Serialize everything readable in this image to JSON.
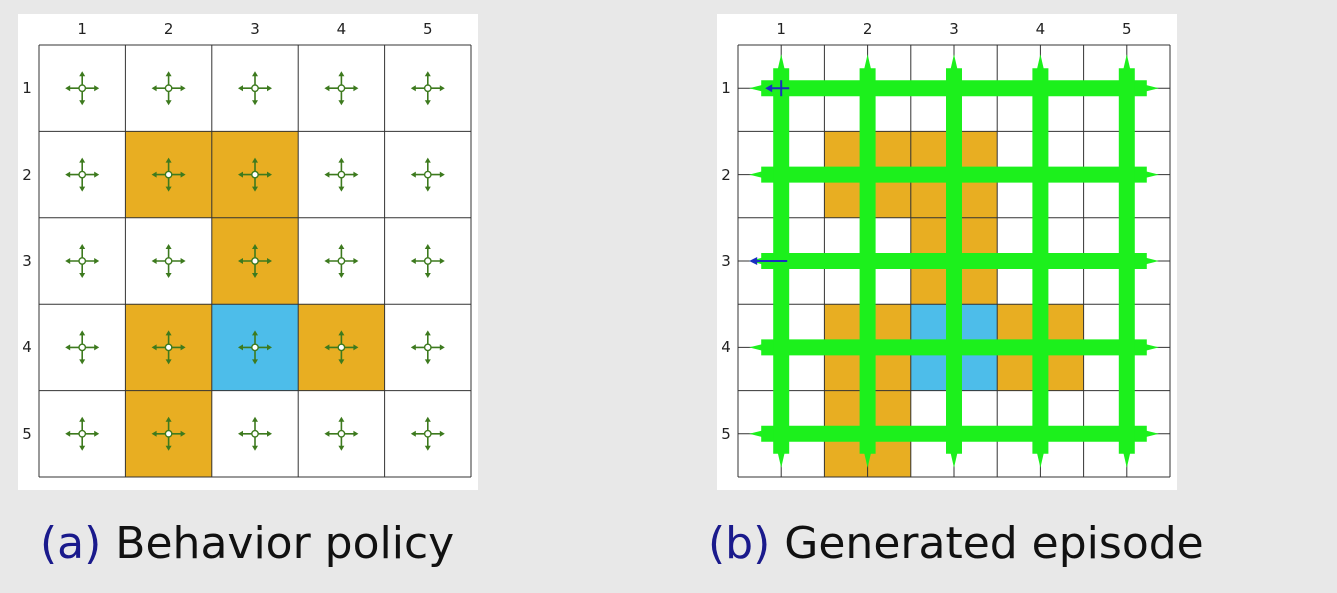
{
  "colors": {
    "forbidden": "#E8AE22",
    "target": "#4DBDEA",
    "grid_line": "#333333",
    "policy_glyph": "#3d7a1e",
    "episode": "#1CF01C",
    "start_arrow": "#1a2fc0"
  },
  "grid": {
    "rows": 5,
    "cols": 5,
    "col_labels": [
      "1",
      "2",
      "3",
      "4",
      "5"
    ],
    "row_labels": [
      "1",
      "2",
      "3",
      "4",
      "5"
    ],
    "forbidden_cells": [
      [
        2,
        2
      ],
      [
        2,
        3
      ],
      [
        3,
        3
      ],
      [
        4,
        2
      ],
      [
        4,
        4
      ],
      [
        5,
        2
      ]
    ],
    "target_cells": [
      [
        4,
        3
      ]
    ]
  },
  "panel_a": {
    "caption_tag": "(a)",
    "caption_text": "Behavior policy",
    "policy_glyph_icon": "four-direction-arrows-icon"
  },
  "panel_b": {
    "caption_tag": "(b)",
    "caption_text": "Generated episode",
    "episode_icon": "trajectory-lines",
    "start_marker_icon": "left-arrow-icon"
  }
}
